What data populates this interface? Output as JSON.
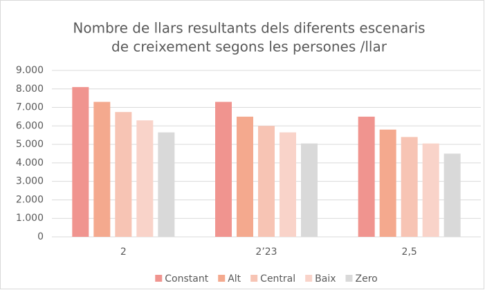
{
  "chart_data": {
    "type": "bar",
    "title": [
      "Nombre de llars  resultants  dels diferents escenaris",
      "de creixement segons les persones  /llar"
    ],
    "categories": [
      "2",
      "2’23",
      "2,5"
    ],
    "series": [
      {
        "name": "Constant",
        "color": "#f0948f",
        "values": [
          8100,
          7300,
          6500
        ]
      },
      {
        "name": "Alt",
        "color": "#f4a98e",
        "values": [
          7300,
          6500,
          5800
        ]
      },
      {
        "name": "Central",
        "color": "#f7c4b4",
        "values": [
          6750,
          6000,
          5400
        ]
      },
      {
        "name": "Baix",
        "color": "#f9d3c9",
        "values": [
          6300,
          5650,
          5050
        ]
      },
      {
        "name": "Zero",
        "color": "#d9d9d9",
        "values": [
          5650,
          5050,
          4500
        ]
      }
    ],
    "ylim": [
      0,
      9000
    ],
    "yticks": [
      0,
      {
        "value": 1000,
        "label": "1.000"
      },
      {
        "value": 2000,
        "label": "2.000"
      },
      {
        "value": 3000,
        "label": "3.000"
      },
      {
        "value": 4000,
        "label": "4.000"
      },
      {
        "value": 5000,
        "label": "5.000"
      },
      {
        "value": 6000,
        "label": "6.000"
      },
      {
        "value": 7000,
        "label": "7.000"
      },
      {
        "value": 8000,
        "label": "8.000"
      },
      {
        "value": 9000,
        "label": "9.000"
      }
    ],
    "grid": true,
    "legend": "bottom"
  }
}
